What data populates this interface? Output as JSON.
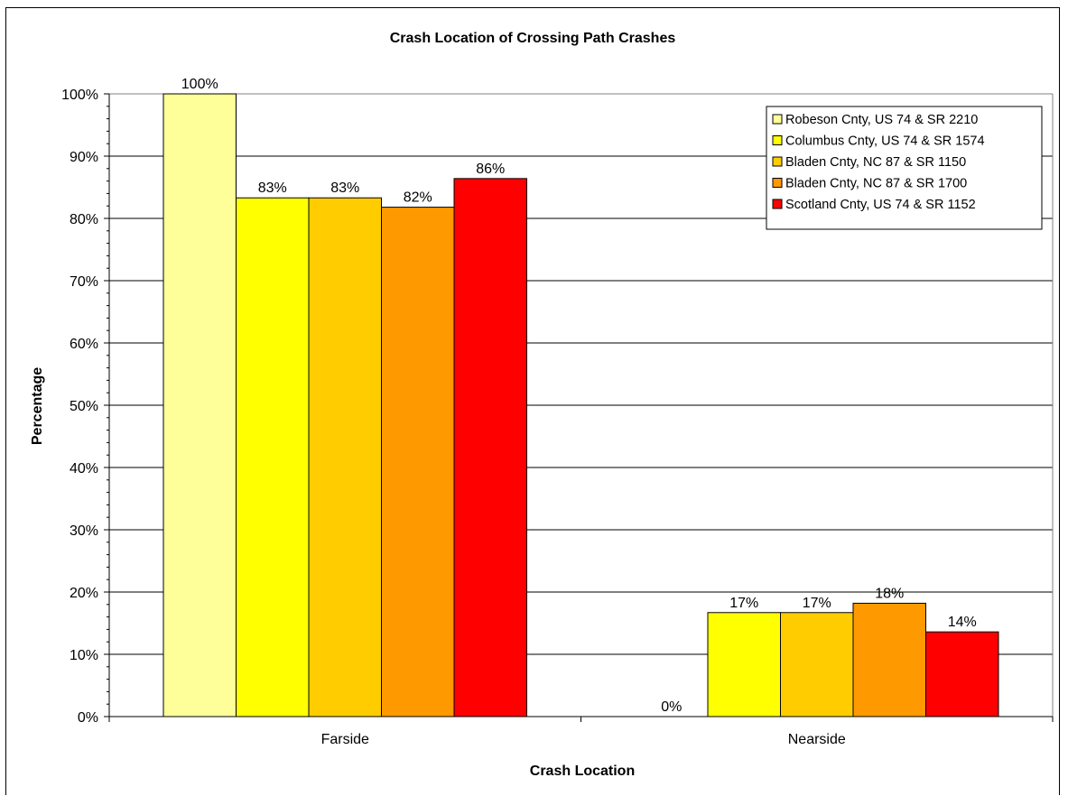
{
  "chart_data": {
    "type": "bar",
    "title": "Crash Location of Crossing Path Crashes",
    "xlabel": "Crash Location",
    "ylabel": "Percentage",
    "categories": [
      "Farside",
      "Nearside"
    ],
    "ylim": [
      0,
      100
    ],
    "yticks": [
      "0%",
      "10%",
      "20%",
      "30%",
      "40%",
      "50%",
      "60%",
      "70%",
      "80%",
      "90%",
      "100%"
    ],
    "grid": true,
    "legend_position": "top-right",
    "series": [
      {
        "name": "Robeson Cnty, US 74 & SR 2210",
        "color": "#ffff99",
        "values": [
          100,
          0
        ],
        "labels": [
          "100%",
          "0%"
        ]
      },
      {
        "name": "Columbus Cnty, US 74 & SR 1574",
        "color": "#ffff00",
        "values": [
          83.3,
          16.7
        ],
        "labels": [
          "83%",
          "17%"
        ]
      },
      {
        "name": "Bladen Cnty, NC 87 & SR 1150",
        "color": "#ffcc00",
        "values": [
          83.3,
          16.7
        ],
        "labels": [
          "83%",
          "17%"
        ]
      },
      {
        "name": "Bladen Cnty, NC 87 & SR 1700",
        "color": "#ff9900",
        "values": [
          81.8,
          18.2
        ],
        "labels": [
          "82%",
          "18%"
        ]
      },
      {
        "name": "Scotland Cnty, US 74 & SR 1152",
        "color": "#ff0000",
        "values": [
          86.4,
          13.6
        ],
        "labels": [
          "86%",
          "14%"
        ]
      }
    ]
  }
}
